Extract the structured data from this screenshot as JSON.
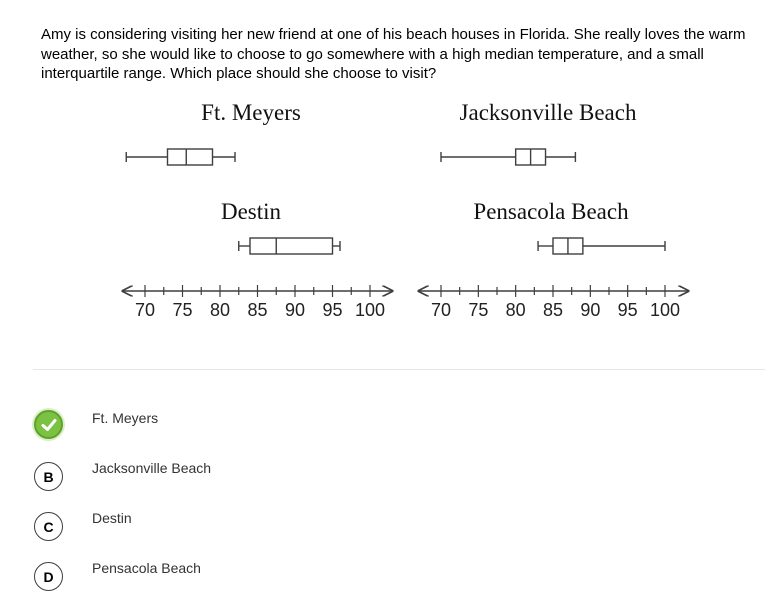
{
  "question": {
    "text": "Amy is considering visiting her new friend at one of his beach houses in Florida. She really loves the warm weather, so she would like to choose to go somewhere with a high median temperature, and a small interquartile range. Which place should she choose to visit?"
  },
  "chart_data": {
    "type": "boxplot",
    "axis": {
      "min": 70,
      "max": 100,
      "tick_labels": [
        "70",
        "75",
        "80",
        "85",
        "90",
        "95",
        "100"
      ],
      "tick_values": [
        70,
        75,
        80,
        85,
        90,
        95,
        100
      ]
    },
    "plots": [
      {
        "title": "Ft. Meyers",
        "min": 67.5,
        "q1": 73,
        "median": 75.5,
        "q3": 79,
        "max": 82
      },
      {
        "title": "Jacksonville Beach",
        "min": 70,
        "q1": 80,
        "median": 82,
        "q3": 84,
        "max": 88
      },
      {
        "title": "Destin",
        "min": 82.5,
        "q1": 84,
        "median": 87.5,
        "q3": 95,
        "max": 96
      },
      {
        "title": "Pensacola Beach",
        "min": 83,
        "q1": 85,
        "median": 87,
        "q3": 89,
        "max": 100
      }
    ]
  },
  "choices": [
    {
      "badge": "",
      "label": "Ft. Meyers",
      "correct": true
    },
    {
      "badge": "B",
      "label": "Jacksonville Beach",
      "correct": false
    },
    {
      "badge": "C",
      "label": "Destin",
      "correct": false
    },
    {
      "badge": "D",
      "label": "Pensacola Beach",
      "correct": false
    }
  ],
  "colors": {
    "correct": "#7cc242",
    "ink": "#3f3f3f"
  }
}
